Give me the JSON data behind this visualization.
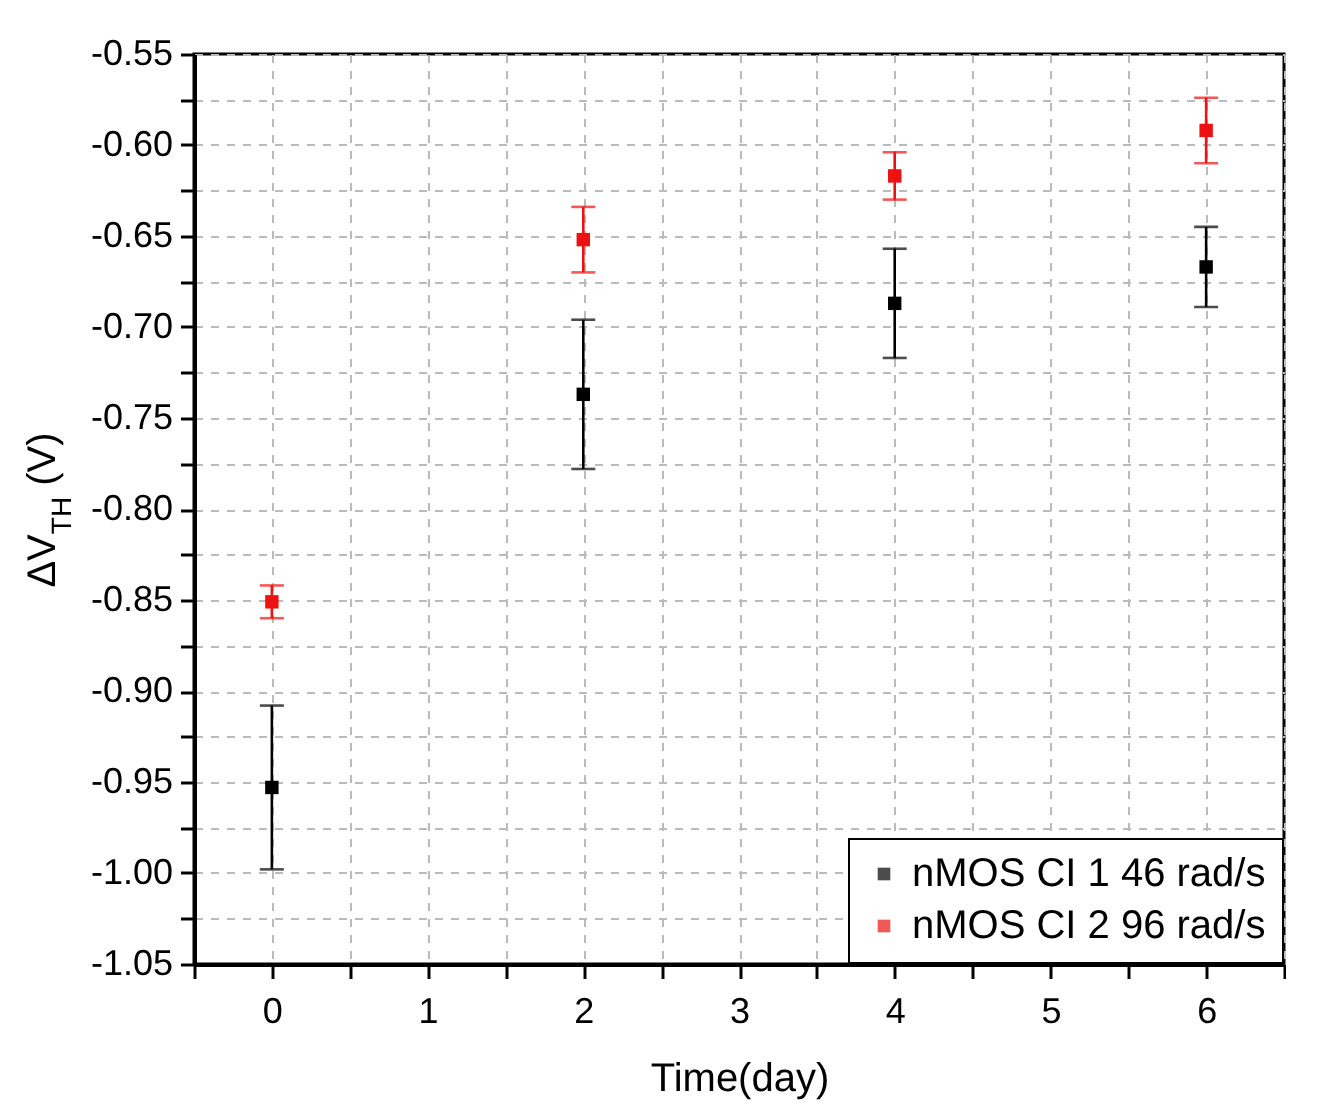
{
  "chart_data": {
    "type": "scatter",
    "xlabel": "Time(day)",
    "ylabel": "ΔV$_{TH}$ (V)",
    "x": [
      0,
      2,
      4,
      6
    ],
    "series": [
      {
        "name": "nMOS CI 1 46 rad/s",
        "color": "#000000",
        "values": [
          -0.953,
          -0.737,
          -0.687,
          -0.667
        ],
        "errors": [
          0.045,
          0.041,
          0.03,
          0.022
        ]
      },
      {
        "name": "nMOS CI 2 96 rad/s",
        "color": "#ee1111",
        "values": [
          -0.851,
          -0.652,
          -0.617,
          -0.592
        ],
        "errors": [
          0.009,
          0.018,
          0.013,
          0.018
        ]
      }
    ],
    "xlim": [
      -0.5,
      6.5
    ],
    "xticks": [
      {
        "value": -0.5,
        "label": null
      },
      0,
      {
        "value": 0.5,
        "label": null
      },
      1,
      {
        "value": 1.5,
        "label": null
      },
      2,
      {
        "value": 2.5,
        "label": null
      },
      3,
      {
        "value": 3.5,
        "label": null
      },
      4,
      {
        "value": 4.5,
        "label": null
      },
      5,
      {
        "value": 5.5,
        "label": null
      },
      6,
      {
        "value": 6.5,
        "label": null
      }
    ],
    "ylim": [
      -1.05,
      -0.55
    ],
    "yticks": [
      {
        "value": -1.05,
        "label": "-1.05"
      },
      {
        "value": -1.025,
        "label": null
      },
      {
        "value": -1.0,
        "label": "-1.00"
      },
      {
        "value": -0.975,
        "label": null
      },
      {
        "value": -0.95,
        "label": "-0.95"
      },
      {
        "value": -0.925,
        "label": null
      },
      {
        "value": -0.9,
        "label": "-0.90"
      },
      {
        "value": -0.875,
        "label": null
      },
      {
        "value": -0.85,
        "label": "-0.85"
      },
      {
        "value": -0.825,
        "label": null
      },
      {
        "value": -0.8,
        "label": "-0.80"
      },
      {
        "value": -0.775,
        "label": null
      },
      {
        "value": -0.75,
        "label": "-0.75"
      },
      {
        "value": -0.725,
        "label": null
      },
      {
        "value": -0.7,
        "label": "-0.70"
      },
      {
        "value": -0.675,
        "label": null
      },
      {
        "value": -0.65,
        "label": "-0.65"
      },
      {
        "value": -0.625,
        "label": null
      },
      {
        "value": -0.6,
        "label": "-0.60"
      },
      {
        "value": -0.575,
        "label": null
      },
      {
        "value": -0.55,
        "label": "-0.55"
      }
    ],
    "grid": true,
    "legend": "bottom right",
    "marker": "square"
  }
}
